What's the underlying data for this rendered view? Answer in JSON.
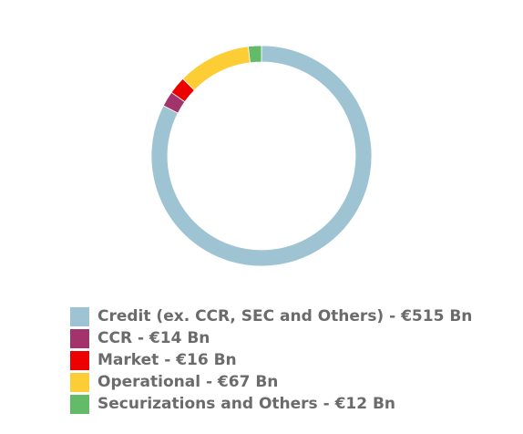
{
  "chart_data": {
    "type": "pie",
    "style": "donut",
    "legend_position": "bottom-left",
    "slices": [
      {
        "label": "Credit (ex. CCR, SEC and Others) - €515 Bn",
        "value": 515,
        "color": "#9ec4d3"
      },
      {
        "label": "CCR - €14 Bn",
        "value": 14,
        "color": "#a3336b"
      },
      {
        "label": "Market - €16 Bn",
        "value": 16,
        "color": "#ec0000"
      },
      {
        "label": "Operational - €67 Bn",
        "value": 67,
        "color": "#fccd34"
      },
      {
        "label": "Securizations and Others - €12 Bn",
        "value": 12,
        "color": "#63ba68"
      }
    ]
  }
}
